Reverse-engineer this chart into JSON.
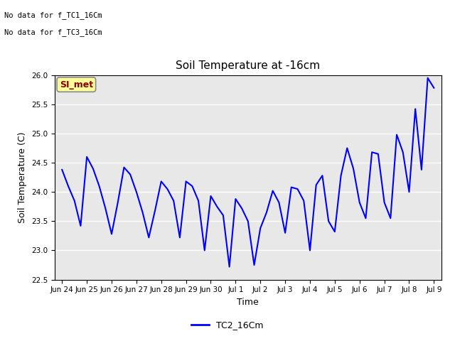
{
  "title": "Soil Temperature at -16cm",
  "xlabel": "Time",
  "ylabel": "Soil Temperature (C)",
  "ylim": [
    22.5,
    26.0
  ],
  "yticks": [
    22.5,
    23.0,
    23.5,
    24.0,
    24.5,
    25.0,
    25.5,
    26.0
  ],
  "line_color": "#0000FF",
  "line_width": 1.5,
  "bg_color": "#E8E8E8",
  "fig_bg_color": "#FFFFFF",
  "legend_label": "TC2_16Cm",
  "legend_box_label": "SI_met",
  "legend_box_facecolor": "#FFFF99",
  "legend_box_edgecolor": "#888888",
  "legend_box_textcolor": "#8B0000",
  "no_data_texts": [
    "No data for f_TC1_16Cm",
    "No data for f_TC3_16Cm"
  ],
  "xtick_labels": [
    "Jun 24",
    "Jun 25",
    "Jun 26",
    "Jun 27",
    "Jun 28",
    "Jun 29",
    "Jun 30",
    "Jul 1",
    "Jul 2",
    "Jul 3",
    "Jul 4",
    "Jul 5",
    "Jul 6",
    "Jul 7",
    "Jul 8",
    "Jul 9"
  ],
  "data_x_days": [
    0,
    0.25,
    0.5,
    0.75,
    1.0,
    1.25,
    1.5,
    1.75,
    2.0,
    2.25,
    2.5,
    2.75,
    3.0,
    3.25,
    3.5,
    3.75,
    4.0,
    4.25,
    4.5,
    4.75,
    5.0,
    5.25,
    5.5,
    5.75,
    6.0,
    6.25,
    6.5,
    6.75,
    7.0,
    7.25,
    7.5,
    7.75,
    8.0,
    8.25,
    8.5,
    8.75,
    9.0,
    9.25,
    9.5,
    9.75,
    10.0,
    10.25,
    10.5,
    10.75,
    11.0,
    11.25,
    11.5,
    11.75,
    12.0,
    12.25,
    12.5,
    12.75,
    13.0,
    13.25,
    13.5,
    13.75,
    14.0,
    14.25,
    14.5,
    14.75,
    15.0
  ],
  "data_y": [
    24.38,
    24.1,
    23.85,
    23.42,
    24.6,
    24.4,
    24.1,
    23.72,
    23.28,
    23.82,
    24.42,
    24.3,
    24.0,
    23.65,
    23.22,
    23.68,
    24.18,
    24.05,
    23.85,
    23.22,
    24.18,
    24.1,
    23.85,
    23.0,
    23.93,
    23.75,
    23.6,
    22.72,
    23.88,
    23.72,
    23.5,
    22.75,
    23.38,
    23.65,
    24.02,
    23.82,
    23.3,
    24.08,
    24.05,
    23.85,
    23.0,
    24.12,
    24.28,
    23.5,
    23.32,
    24.28,
    24.75,
    24.4,
    23.82,
    23.55,
    24.68,
    24.65,
    23.82,
    23.55,
    24.98,
    24.68,
    24.0,
    25.42,
    24.38,
    25.95,
    25.78
  ]
}
